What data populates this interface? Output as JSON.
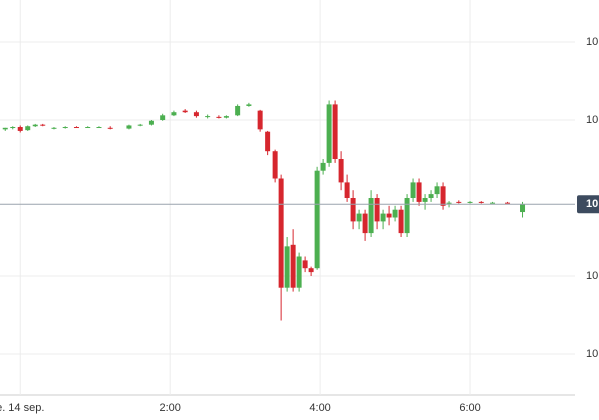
{
  "chart_data": {
    "type": "candlestick",
    "x": [
      -0.2,
      -0.1,
      0.0,
      0.1,
      0.2,
      0.3,
      0.45,
      0.6,
      0.75,
      0.9,
      1.05,
      1.2,
      1.45,
      1.6,
      1.75,
      1.9,
      2.05,
      2.2,
      2.35,
      2.5,
      2.65,
      2.75,
      2.9,
      3.05,
      3.2,
      3.3,
      3.4,
      3.48,
      3.56,
      3.64,
      3.72,
      3.8,
      3.88,
      3.96,
      4.04,
      4.12,
      4.2,
      4.28,
      4.36,
      4.44,
      4.52,
      4.6,
      4.68,
      4.76,
      4.84,
      4.92,
      5.0,
      5.08,
      5.16,
      5.24,
      5.32,
      5.4,
      5.48,
      5.56,
      5.64,
      5.72,
      5.85,
      6.0,
      6.15,
      6.3,
      6.5,
      6.7
    ],
    "open": [
      2.88,
      2.9,
      2.91,
      2.87,
      2.92,
      2.94,
      2.9,
      2.9,
      2.91,
      2.91,
      2.91,
      2.9,
      2.89,
      2.93,
      2.94,
      3.0,
      3.06,
      3.12,
      3.1,
      3.05,
      3.04,
      3.03,
      3.06,
      3.18,
      3.12,
      2.85,
      2.6,
      2.25,
      0.85,
      1.4,
      0.85,
      1.2,
      1.1,
      1.1,
      2.35,
      2.45,
      3.2,
      2.5,
      2.2,
      2.0,
      1.7,
      1.8,
      1.55,
      2.0,
      1.7,
      1.8,
      1.75,
      1.85,
      1.55,
      2.0,
      2.2,
      1.95,
      2.0,
      2.05,
      2.15,
      1.93,
      1.95,
      1.94,
      1.95,
      1.94,
      1.94,
      1.82
    ],
    "high": [
      2.9,
      2.92,
      2.93,
      2.93,
      2.95,
      2.95,
      2.91,
      2.92,
      2.92,
      2.92,
      2.92,
      2.92,
      2.94,
      2.95,
      3.0,
      3.08,
      3.12,
      3.14,
      3.12,
      3.07,
      3.06,
      3.06,
      3.2,
      3.22,
      3.13,
      2.86,
      2.62,
      2.3,
      1.5,
      1.6,
      1.3,
      1.25,
      1.12,
      2.4,
      2.5,
      3.25,
      3.25,
      2.6,
      2.3,
      2.1,
      1.85,
      1.85,
      2.1,
      2.05,
      1.85,
      1.9,
      1.9,
      1.9,
      2.05,
      2.25,
      2.25,
      2.05,
      2.1,
      2.2,
      2.2,
      1.96,
      1.97,
      1.96,
      1.96,
      1.95,
      1.95,
      1.95
    ],
    "low": [
      2.86,
      2.88,
      2.84,
      2.86,
      2.91,
      2.92,
      2.88,
      2.89,
      2.9,
      2.9,
      2.9,
      2.88,
      2.88,
      2.92,
      2.93,
      2.99,
      3.05,
      3.09,
      3.03,
      3.02,
      3.02,
      3.02,
      3.05,
      3.17,
      2.85,
      2.55,
      2.2,
      0.43,
      0.8,
      0.8,
      0.8,
      1.05,
      1.0,
      1.08,
      2.3,
      2.4,
      2.45,
      2.1,
      1.95,
      1.6,
      1.6,
      1.45,
      1.5,
      1.6,
      1.6,
      1.65,
      1.7,
      1.5,
      1.5,
      1.95,
      1.9,
      1.85,
      1.95,
      2.0,
      1.85,
      1.88,
      1.93,
      1.93,
      1.93,
      1.93,
      1.93,
      1.75
    ],
    "close": [
      2.9,
      2.91,
      2.86,
      2.92,
      2.94,
      2.93,
      2.9,
      2.91,
      2.9,
      2.91,
      2.91,
      2.89,
      2.93,
      2.94,
      2.99,
      3.06,
      3.1,
      3.1,
      3.05,
      3.05,
      3.03,
      3.05,
      3.18,
      3.2,
      2.88,
      2.6,
      2.25,
      0.85,
      1.38,
      0.85,
      1.25,
      1.1,
      1.05,
      2.35,
      2.45,
      3.2,
      2.5,
      2.2,
      2.0,
      1.7,
      1.8,
      1.55,
      2.0,
      1.7,
      1.8,
      1.75,
      1.85,
      1.55,
      2.0,
      2.2,
      1.95,
      2.0,
      2.05,
      2.15,
      1.9,
      1.94,
      1.94,
      1.95,
      1.94,
      1.94,
      1.93,
      1.92
    ],
    "up_color": "#4caf50",
    "down_color": "#d6262e",
    "xlim": [
      -0.27,
      7.4
    ],
    "xticks": [
      {
        "value": 0,
        "label": "e. 14 sep."
      },
      {
        "value": 2,
        "label": "2:00"
      },
      {
        "value": 4,
        "label": "4:00"
      },
      {
        "value": 6,
        "label": "6:00"
      }
    ],
    "ylim": [
      -0.5,
      4.5
    ],
    "yticks": [
      {
        "value": 0,
        "label": "10"
      },
      {
        "value": 1,
        "label": "10"
      },
      {
        "value": 3,
        "label": "10"
      },
      {
        "value": 4,
        "label": "10"
      }
    ],
    "last_price": {
      "value": 1.92,
      "label": "10"
    },
    "grid": true
  }
}
